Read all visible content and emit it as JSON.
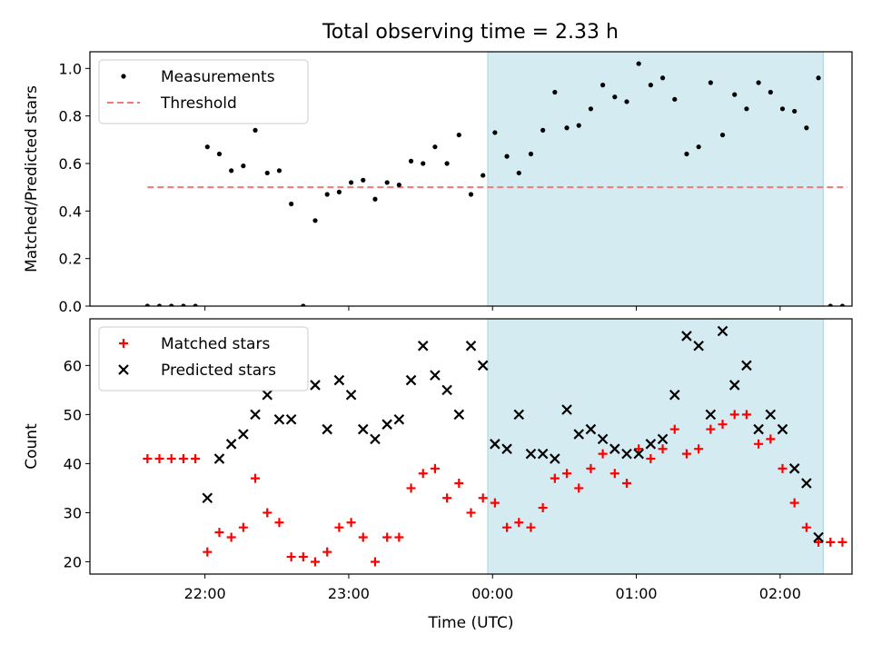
{
  "figure_title": "Total observing time = 2.33 h",
  "chart_data": [
    {
      "type": "scatter",
      "panel": "top",
      "title": "Total observing time = 2.33 h",
      "ylabel": "Matched/Predicted stars",
      "xlabel": "",
      "xlim": [
        "21:12",
        "02:30"
      ],
      "ylim": [
        0,
        1.07
      ],
      "yticks": [
        0.0,
        0.2,
        0.4,
        0.6,
        0.8,
        1.0
      ],
      "ytick_labels": [
        "0.0",
        "0.2",
        "0.4",
        "0.6",
        "0.8",
        "1.0"
      ],
      "legend_position": "top-left",
      "highlight_span": [
        "23:58",
        "02:18"
      ],
      "highlight_color": "#d4ebf2",
      "threshold": {
        "name": "Threshold",
        "value": 0.5,
        "x": [
          "21:36",
          "02:28"
        ],
        "color": "#f07a7a",
        "style": "dashed"
      },
      "series": [
        {
          "name": "Measurements",
          "marker": "dot",
          "color": "#000000",
          "points": [
            [
              "21:36",
              0.0
            ],
            [
              "21:41",
              0.0
            ],
            [
              "21:46",
              0.0
            ],
            [
              "21:51",
              0.0
            ],
            [
              "21:56",
              0.0
            ],
            [
              "22:01",
              0.67
            ],
            [
              "22:06",
              0.64
            ],
            [
              "22:11",
              0.57
            ],
            [
              "22:16",
              0.59
            ],
            [
              "22:21",
              0.74
            ],
            [
              "22:26",
              0.56
            ],
            [
              "22:31",
              0.57
            ],
            [
              "22:36",
              0.43
            ],
            [
              "22:41",
              0.0
            ],
            [
              "22:46",
              0.36
            ],
            [
              "22:51",
              0.47
            ],
            [
              "22:56",
              0.48
            ],
            [
              "23:01",
              0.52
            ],
            [
              "23:06",
              0.53
            ],
            [
              "23:11",
              0.45
            ],
            [
              "23:16",
              0.52
            ],
            [
              "23:21",
              0.51
            ],
            [
              "23:26",
              0.61
            ],
            [
              "23:31",
              0.6
            ],
            [
              "23:36",
              0.67
            ],
            [
              "23:41",
              0.6
            ],
            [
              "23:46",
              0.72
            ],
            [
              "23:51",
              0.47
            ],
            [
              "23:56",
              0.55
            ],
            [
              "00:01",
              0.73
            ],
            [
              "00:06",
              0.63
            ],
            [
              "00:11",
              0.56
            ],
            [
              "00:16",
              0.64
            ],
            [
              "00:21",
              0.74
            ],
            [
              "00:26",
              0.9
            ],
            [
              "00:31",
              0.75
            ],
            [
              "00:36",
              0.76
            ],
            [
              "00:41",
              0.83
            ],
            [
              "00:46",
              0.93
            ],
            [
              "00:51",
              0.88
            ],
            [
              "00:56",
              0.86
            ],
            [
              "01:01",
              1.02
            ],
            [
              "01:06",
              0.93
            ],
            [
              "01:11",
              0.96
            ],
            [
              "01:16",
              0.87
            ],
            [
              "01:21",
              0.64
            ],
            [
              "01:26",
              0.67
            ],
            [
              "01:31",
              0.94
            ],
            [
              "01:36",
              0.72
            ],
            [
              "01:41",
              0.89
            ],
            [
              "01:46",
              0.83
            ],
            [
              "01:51",
              0.94
            ],
            [
              "01:56",
              0.9
            ],
            [
              "02:01",
              0.83
            ],
            [
              "02:06",
              0.82
            ],
            [
              "02:11",
              0.75
            ],
            [
              "02:16",
              0.96
            ],
            [
              "02:21",
              0.0
            ],
            [
              "02:26",
              0.0
            ]
          ]
        }
      ]
    },
    {
      "type": "scatter",
      "panel": "bottom",
      "title": "",
      "ylabel": "Count",
      "xlabel": "Time (UTC)",
      "xlim": [
        "21:12",
        "02:30"
      ],
      "xticks": [
        "22:00",
        "23:00",
        "00:00",
        "01:00",
        "02:00"
      ],
      "ylim": [
        17.5,
        69.5
      ],
      "yticks": [
        20,
        30,
        40,
        50,
        60
      ],
      "ytick_labels": [
        "20",
        "30",
        "40",
        "50",
        "60"
      ],
      "legend_position": "top-left",
      "highlight_span": [
        "23:58",
        "02:18"
      ],
      "highlight_color": "#d4ebf2",
      "series": [
        {
          "name": "Matched stars",
          "marker": "plus",
          "color": "#ff0000",
          "points": [
            [
              "21:36",
              41
            ],
            [
              "21:41",
              41
            ],
            [
              "21:46",
              41
            ],
            [
              "21:51",
              41
            ],
            [
              "21:56",
              41
            ],
            [
              "22:01",
              22
            ],
            [
              "22:06",
              26
            ],
            [
              "22:11",
              25
            ],
            [
              "22:16",
              27
            ],
            [
              "22:21",
              37
            ],
            [
              "22:26",
              30
            ],
            [
              "22:31",
              28
            ],
            [
              "22:36",
              21
            ],
            [
              "22:41",
              21
            ],
            [
              "22:46",
              20
            ],
            [
              "22:51",
              22
            ],
            [
              "22:56",
              27
            ],
            [
              "23:01",
              28
            ],
            [
              "23:06",
              25
            ],
            [
              "23:11",
              20
            ],
            [
              "23:16",
              25
            ],
            [
              "23:21",
              25
            ],
            [
              "23:26",
              35
            ],
            [
              "23:31",
              38
            ],
            [
              "23:36",
              39
            ],
            [
              "23:41",
              33
            ],
            [
              "23:46",
              36
            ],
            [
              "23:51",
              30
            ],
            [
              "23:56",
              33
            ],
            [
              "00:01",
              32
            ],
            [
              "00:06",
              27
            ],
            [
              "00:11",
              28
            ],
            [
              "00:16",
              27
            ],
            [
              "00:21",
              31
            ],
            [
              "00:26",
              37
            ],
            [
              "00:31",
              38
            ],
            [
              "00:36",
              35
            ],
            [
              "00:41",
              39
            ],
            [
              "00:46",
              42
            ],
            [
              "00:51",
              38
            ],
            [
              "00:56",
              36
            ],
            [
              "01:01",
              43
            ],
            [
              "01:06",
              41
            ],
            [
              "01:11",
              43
            ],
            [
              "01:16",
              47
            ],
            [
              "01:21",
              42
            ],
            [
              "01:26",
              43
            ],
            [
              "01:31",
              47
            ],
            [
              "01:36",
              48
            ],
            [
              "01:41",
              50
            ],
            [
              "01:46",
              50
            ],
            [
              "01:51",
              44
            ],
            [
              "01:56",
              45
            ],
            [
              "02:01",
              39
            ],
            [
              "02:06",
              32
            ],
            [
              "02:11",
              27
            ],
            [
              "02:16",
              24
            ],
            [
              "02:21",
              24
            ],
            [
              "02:26",
              24
            ]
          ]
        },
        {
          "name": "Predicted stars",
          "marker": "x",
          "color": "#000000",
          "points": [
            [
              "22:01",
              33
            ],
            [
              "22:06",
              41
            ],
            [
              "22:11",
              44
            ],
            [
              "22:16",
              46
            ],
            [
              "22:21",
              50
            ],
            [
              "22:26",
              54
            ],
            [
              "22:31",
              49
            ],
            [
              "22:36",
              49
            ],
            [
              "22:46",
              56
            ],
            [
              "22:51",
              47
            ],
            [
              "22:56",
              57
            ],
            [
              "23:01",
              54
            ],
            [
              "23:06",
              47
            ],
            [
              "23:11",
              45
            ],
            [
              "23:16",
              48
            ],
            [
              "23:21",
              49
            ],
            [
              "23:26",
              57
            ],
            [
              "23:31",
              64
            ],
            [
              "23:36",
              58
            ],
            [
              "23:41",
              55
            ],
            [
              "23:46",
              50
            ],
            [
              "23:51",
              64
            ],
            [
              "23:56",
              60
            ],
            [
              "00:01",
              44
            ],
            [
              "00:06",
              43
            ],
            [
              "00:11",
              50
            ],
            [
              "00:16",
              42
            ],
            [
              "00:21",
              42
            ],
            [
              "00:26",
              41
            ],
            [
              "00:31",
              51
            ],
            [
              "00:36",
              46
            ],
            [
              "00:41",
              47
            ],
            [
              "00:46",
              45
            ],
            [
              "00:51",
              43
            ],
            [
              "00:56",
              42
            ],
            [
              "01:01",
              42
            ],
            [
              "01:06",
              44
            ],
            [
              "01:11",
              45
            ],
            [
              "01:16",
              54
            ],
            [
              "01:21",
              66
            ],
            [
              "01:26",
              64
            ],
            [
              "01:31",
              50
            ],
            [
              "01:36",
              67
            ],
            [
              "01:41",
              56
            ],
            [
              "01:46",
              60
            ],
            [
              "01:51",
              47
            ],
            [
              "01:56",
              50
            ],
            [
              "02:01",
              47
            ],
            [
              "02:06",
              39
            ],
            [
              "02:11",
              36
            ],
            [
              "02:16",
              25
            ]
          ]
        }
      ]
    }
  ]
}
